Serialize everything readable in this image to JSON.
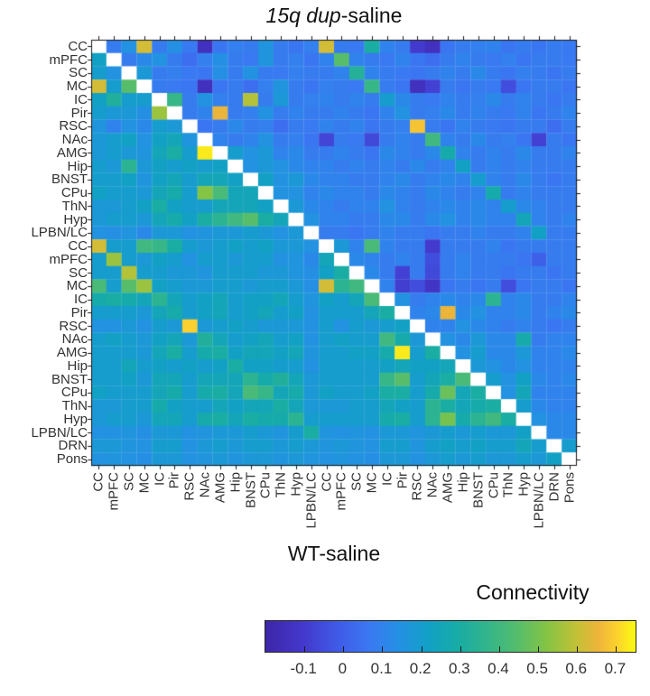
{
  "title": {
    "italic": "15q dup",
    "rest": "-saline"
  },
  "x_axis_title": "WT-saline",
  "colorbar": {
    "title": "Connectivity",
    "tick_labels": [
      "-0.1",
      "0",
      "0.1",
      "0.2",
      "0.3",
      "0.4",
      "0.5",
      "0.6",
      "0.7"
    ],
    "tick_values": [
      -0.1,
      0,
      0.1,
      0.2,
      0.3,
      0.4,
      0.5,
      0.6,
      0.7
    ],
    "domain": [
      -0.2,
      0.75
    ]
  },
  "colors": {
    "background": "#ffffff",
    "axis": "#1a1a1a",
    "tick_label": "#333333",
    "title_text": "#111111",
    "diagonal_cell": "#ffffff",
    "colormap_name": "parula",
    "colormap_stops": [
      [
        0.0,
        "#3e26a8"
      ],
      [
        0.1,
        "#4338cb"
      ],
      [
        0.2,
        "#3f5ce8"
      ],
      [
        0.28,
        "#3a78f2"
      ],
      [
        0.36,
        "#2490e4"
      ],
      [
        0.44,
        "#12a0c6"
      ],
      [
        0.52,
        "#18aca5"
      ],
      [
        0.6,
        "#33b58b"
      ],
      [
        0.68,
        "#55bd6d"
      ],
      [
        0.76,
        "#84c444"
      ],
      [
        0.84,
        "#c2c136"
      ],
      [
        0.9,
        "#eeb43a"
      ],
      [
        0.95,
        "#fcd22e"
      ],
      [
        1.0,
        "#f9fb0e"
      ]
    ]
  },
  "chart_data": {
    "type": "heatmap",
    "title": "15q dup-saline",
    "xlabel": "WT-saline",
    "legend_label": "Connectivity",
    "upper_triangle_group": "15q dup-saline",
    "lower_triangle_group": "WT-saline",
    "value_domain": [
      -0.2,
      0.75
    ],
    "grid": false,
    "labels": [
      "CC",
      "mPFC",
      "SC",
      "MC",
      "IC",
      "Pir",
      "RSC",
      "NAc",
      "AMG",
      "Hip",
      "BNST",
      "CPu",
      "ThN",
      "Hyp",
      "LPBN/LC",
      "CC",
      "mPFC",
      "SC",
      "MC",
      "IC",
      "Pir",
      "RSC",
      "NAc",
      "AMG",
      "Hip",
      "BNST",
      "CPu",
      "ThN",
      "Hyp",
      "LPBN/LC",
      "DRN",
      "Pons"
    ],
    "values": [
      [
        null,
        0.08,
        0.15,
        0.62,
        0.08,
        0.14,
        0.07,
        -0.14,
        0.06,
        0.09,
        0.08,
        0.16,
        0.08,
        0.06,
        0.09,
        0.62,
        0.08,
        0.07,
        0.3,
        0.1,
        0.08,
        -0.1,
        -0.14,
        0.06,
        0.08,
        0.09,
        0.1,
        0.06,
        0.08,
        0.06,
        0.08,
        0.07
      ],
      [
        0.22,
        null,
        0.08,
        0.12,
        0.15,
        0.08,
        0.04,
        0.09,
        0.14,
        0.08,
        0.07,
        0.16,
        0.08,
        0.09,
        0.06,
        0.1,
        0.45,
        0.1,
        0.08,
        0.07,
        0.1,
        0.06,
        0.04,
        0.08,
        0.1,
        0.08,
        0.07,
        0.09,
        0.06,
        0.08,
        0.08,
        0.07
      ],
      [
        0.2,
        0.15,
        null,
        0.18,
        0.08,
        0.09,
        0.07,
        0.06,
        0.14,
        0.08,
        0.15,
        0.08,
        0.07,
        0.09,
        0.08,
        0.08,
        0.1,
        0.33,
        0.1,
        0.08,
        0.07,
        0.06,
        0.08,
        0.1,
        0.08,
        0.12,
        0.08,
        0.06,
        0.09,
        0.08,
        0.06,
        0.08
      ],
      [
        0.62,
        0.2,
        0.45,
        null,
        0.08,
        0.07,
        0.06,
        -0.14,
        0.06,
        0.08,
        0.04,
        0.09,
        0.16,
        0.08,
        0.06,
        0.09,
        0.08,
        0.07,
        0.38,
        0.08,
        0.06,
        -0.14,
        -0.08,
        0.08,
        0.06,
        0.08,
        0.07,
        -0.05,
        0.06,
        0.08,
        0.08,
        0.06
      ],
      [
        0.22,
        0.32,
        0.2,
        0.2,
        null,
        0.38,
        0.08,
        0.15,
        0.09,
        0.08,
        0.58,
        0.08,
        0.18,
        0.08,
        0.09,
        0.1,
        0.08,
        0.1,
        0.08,
        0.2,
        0.12,
        0.08,
        0.07,
        0.1,
        0.08,
        0.09,
        0.12,
        0.08,
        0.1,
        0.08,
        0.06,
        0.08
      ],
      [
        0.2,
        0.18,
        0.18,
        0.14,
        0.55,
        null,
        0.08,
        0.1,
        0.65,
        0.08,
        0.09,
        0.15,
        0.08,
        0.1,
        0.08,
        0.08,
        0.1,
        0.08,
        0.06,
        0.1,
        0.15,
        0.08,
        0.09,
        0.12,
        0.08,
        0.1,
        0.08,
        0.07,
        0.1,
        0.06,
        0.08,
        0.1
      ],
      [
        0.16,
        0.1,
        0.15,
        0.12,
        0.2,
        0.18,
        null,
        0.06,
        0.08,
        0.12,
        0.08,
        0.09,
        0.04,
        0.08,
        0.07,
        0.1,
        0.08,
        0.1,
        0.06,
        0.08,
        0.09,
        0.68,
        0.08,
        0.06,
        0.1,
        0.08,
        0.07,
        0.06,
        0.08,
        0.08,
        0.04,
        0.08
      ],
      [
        0.18,
        0.2,
        0.22,
        0.15,
        0.22,
        0.25,
        0.16,
        null,
        0.1,
        0.08,
        0.1,
        0.15,
        0.08,
        0.09,
        0.06,
        -0.07,
        0.08,
        0.07,
        -0.06,
        0.08,
        0.1,
        0.08,
        0.4,
        0.1,
        0.08,
        0.12,
        0.08,
        0.09,
        0.06,
        -0.08,
        0.08,
        0.06
      ],
      [
        0.18,
        0.2,
        0.18,
        0.16,
        0.25,
        0.3,
        0.2,
        0.73,
        null,
        0.2,
        0.15,
        0.18,
        0.1,
        0.12,
        0.08,
        0.08,
        0.1,
        0.08,
        0.06,
        0.12,
        0.1,
        0.08,
        0.12,
        0.28,
        0.1,
        0.08,
        0.1,
        0.08,
        0.12,
        0.08,
        0.08,
        0.1
      ],
      [
        0.2,
        0.18,
        0.35,
        0.18,
        0.22,
        0.2,
        0.22,
        0.2,
        0.22,
        null,
        0.15,
        0.18,
        0.15,
        0.12,
        0.1,
        0.1,
        0.08,
        0.1,
        0.08,
        0.1,
        0.08,
        0.12,
        0.08,
        0.1,
        0.22,
        0.08,
        0.1,
        0.08,
        0.1,
        0.08,
        0.08,
        0.08
      ],
      [
        0.2,
        0.2,
        0.22,
        0.16,
        0.22,
        0.25,
        0.2,
        0.25,
        0.25,
        0.22,
        null,
        0.22,
        0.15,
        0.18,
        0.12,
        0.1,
        0.1,
        0.08,
        0.08,
        0.1,
        0.12,
        0.08,
        0.1,
        0.12,
        0.1,
        0.2,
        0.1,
        0.08,
        0.12,
        0.08,
        0.06,
        0.08
      ],
      [
        0.22,
        0.2,
        0.2,
        0.18,
        0.25,
        0.28,
        0.2,
        0.52,
        0.42,
        0.25,
        0.25,
        null,
        0.15,
        0.15,
        0.1,
        0.12,
        0.1,
        0.1,
        0.08,
        0.12,
        0.1,
        0.08,
        0.12,
        0.1,
        0.08,
        0.1,
        0.28,
        0.08,
        0.1,
        0.08,
        0.08,
        0.08
      ],
      [
        0.18,
        0.18,
        0.2,
        0.22,
        0.3,
        0.22,
        0.2,
        0.2,
        0.25,
        0.25,
        0.25,
        0.22,
        null,
        0.18,
        0.12,
        0.1,
        0.08,
        0.1,
        0.1,
        0.15,
        0.1,
        0.08,
        0.1,
        0.12,
        0.1,
        0.12,
        0.1,
        0.2,
        0.12,
        0.1,
        0.08,
        0.08
      ],
      [
        0.18,
        0.2,
        0.2,
        0.18,
        0.25,
        0.28,
        0.22,
        0.3,
        0.35,
        0.4,
        0.45,
        0.3,
        0.25,
        null,
        0.15,
        0.1,
        0.1,
        0.08,
        0.08,
        0.12,
        0.12,
        0.08,
        0.12,
        0.15,
        0.1,
        0.12,
        0.1,
        0.1,
        0.25,
        0.1,
        0.08,
        0.1
      ],
      [
        0.15,
        0.14,
        0.16,
        0.12,
        0.18,
        0.18,
        0.15,
        0.16,
        0.18,
        0.18,
        0.2,
        0.18,
        0.15,
        0.18,
        null,
        0.08,
        0.08,
        0.06,
        0.08,
        0.1,
        0.08,
        0.08,
        0.06,
        0.08,
        0.08,
        0.1,
        0.08,
        0.08,
        0.1,
        0.22,
        0.08,
        0.08
      ],
      [
        0.62,
        0.2,
        0.2,
        0.4,
        0.38,
        0.3,
        0.2,
        0.18,
        0.2,
        0.22,
        0.2,
        0.22,
        0.18,
        0.18,
        0.15,
        null,
        0.18,
        0.1,
        0.42,
        0.1,
        0.08,
        0.08,
        -0.1,
        0.08,
        0.08,
        0.08,
        0.1,
        0.06,
        0.08,
        0.08,
        0.08,
        0.08
      ],
      [
        0.2,
        0.55,
        0.2,
        0.18,
        0.22,
        0.2,
        0.15,
        0.2,
        0.2,
        0.18,
        0.2,
        0.2,
        0.15,
        0.16,
        0.12,
        0.25,
        null,
        0.12,
        0.1,
        0.08,
        0.1,
        0.08,
        -0.05,
        0.08,
        0.1,
        0.08,
        0.08,
        0.08,
        0.06,
        0.0,
        0.08,
        0.08
      ],
      [
        0.2,
        0.2,
        0.58,
        0.2,
        0.2,
        0.18,
        0.18,
        0.16,
        0.2,
        0.2,
        0.2,
        0.18,
        0.18,
        0.16,
        0.14,
        0.22,
        0.3,
        null,
        0.12,
        0.08,
        -0.08,
        0.08,
        -0.06,
        0.08,
        0.1,
        0.08,
        0.08,
        0.06,
        0.08,
        0.08,
        0.06,
        0.08
      ],
      [
        0.42,
        0.2,
        0.45,
        0.55,
        0.22,
        0.2,
        0.18,
        0.18,
        0.2,
        0.2,
        0.18,
        0.2,
        0.2,
        0.18,
        0.14,
        0.62,
        0.35,
        0.4,
        null,
        0.1,
        -0.09,
        -0.05,
        -0.12,
        0.06,
        0.08,
        0.06,
        0.08,
        -0.05,
        0.06,
        0.08,
        0.08,
        0.06
      ],
      [
        0.28,
        0.3,
        0.28,
        0.25,
        0.35,
        0.25,
        0.2,
        0.22,
        0.25,
        0.2,
        0.22,
        0.22,
        0.25,
        0.2,
        0.16,
        0.22,
        0.2,
        0.25,
        0.42,
        null,
        0.15,
        0.08,
        0.1,
        0.12,
        0.1,
        0.12,
        0.35,
        0.1,
        0.12,
        0.08,
        0.08,
        0.1
      ],
      [
        0.2,
        0.2,
        0.2,
        0.18,
        0.25,
        0.28,
        0.2,
        0.22,
        0.25,
        0.2,
        0.22,
        0.25,
        0.2,
        0.22,
        0.15,
        0.2,
        0.2,
        0.2,
        0.25,
        0.3,
        null,
        0.1,
        0.12,
        0.65,
        0.12,
        0.15,
        0.1,
        0.1,
        0.12,
        0.08,
        0.1,
        0.12
      ],
      [
        0.15,
        0.15,
        0.18,
        0.15,
        0.2,
        0.18,
        0.7,
        0.18,
        0.2,
        0.22,
        0.2,
        0.18,
        0.18,
        0.18,
        0.15,
        0.2,
        0.15,
        0.2,
        0.18,
        0.2,
        0.22,
        null,
        0.1,
        0.1,
        0.15,
        0.12,
        0.1,
        0.08,
        0.1,
        0.08,
        0.06,
        0.08
      ],
      [
        0.2,
        0.22,
        0.2,
        0.18,
        0.22,
        0.25,
        0.18,
        0.32,
        0.25,
        0.2,
        0.22,
        0.25,
        0.2,
        0.22,
        0.15,
        0.2,
        0.22,
        0.2,
        0.2,
        0.4,
        0.28,
        0.18,
        null,
        0.15,
        0.12,
        0.18,
        0.12,
        0.12,
        0.28,
        0.08,
        0.1,
        0.1
      ],
      [
        0.2,
        0.2,
        0.2,
        0.18,
        0.25,
        0.3,
        0.2,
        0.28,
        0.3,
        0.22,
        0.25,
        0.25,
        0.22,
        0.25,
        0.16,
        0.2,
        0.2,
        0.22,
        0.22,
        0.28,
        0.73,
        0.2,
        0.3,
        null,
        0.15,
        0.2,
        0.12,
        0.12,
        0.18,
        0.1,
        0.1,
        0.12
      ],
      [
        0.2,
        0.2,
        0.25,
        0.2,
        0.22,
        0.2,
        0.22,
        0.2,
        0.22,
        0.3,
        0.22,
        0.22,
        0.2,
        0.2,
        0.15,
        0.2,
        0.2,
        0.2,
        0.2,
        0.22,
        0.25,
        0.22,
        0.22,
        0.25,
        null,
        0.18,
        0.15,
        0.12,
        0.15,
        0.1,
        0.1,
        0.1
      ],
      [
        0.2,
        0.2,
        0.22,
        0.18,
        0.25,
        0.25,
        0.2,
        0.25,
        0.25,
        0.25,
        0.35,
        0.28,
        0.32,
        0.25,
        0.18,
        0.2,
        0.2,
        0.2,
        0.2,
        0.38,
        0.45,
        0.2,
        0.25,
        0.3,
        0.42,
        null,
        0.2,
        0.15,
        0.22,
        0.12,
        0.1,
        0.12
      ],
      [
        0.22,
        0.2,
        0.2,
        0.2,
        0.25,
        0.28,
        0.2,
        0.28,
        0.3,
        0.25,
        0.42,
        0.38,
        0.25,
        0.28,
        0.18,
        0.22,
        0.2,
        0.2,
        0.22,
        0.3,
        0.3,
        0.2,
        0.28,
        0.48,
        0.25,
        0.3,
        null,
        0.15,
        0.25,
        0.1,
        0.1,
        0.1
      ],
      [
        0.18,
        0.18,
        0.2,
        0.2,
        0.28,
        0.22,
        0.2,
        0.2,
        0.25,
        0.22,
        0.25,
        0.25,
        0.3,
        0.25,
        0.18,
        0.18,
        0.18,
        0.2,
        0.2,
        0.25,
        0.22,
        0.2,
        0.35,
        0.3,
        0.25,
        0.28,
        0.3,
        null,
        0.2,
        0.12,
        0.1,
        0.1
      ],
      [
        0.18,
        0.2,
        0.2,
        0.18,
        0.25,
        0.25,
        0.2,
        0.28,
        0.3,
        0.25,
        0.3,
        0.28,
        0.28,
        0.35,
        0.2,
        0.2,
        0.2,
        0.2,
        0.2,
        0.28,
        0.3,
        0.2,
        0.35,
        0.5,
        0.28,
        0.35,
        0.4,
        0.3,
        null,
        0.15,
        0.12,
        0.12
      ],
      [
        0.15,
        0.15,
        0.16,
        0.14,
        0.18,
        0.18,
        0.15,
        0.16,
        0.18,
        0.18,
        0.2,
        0.18,
        0.16,
        0.2,
        0.3,
        0.16,
        0.15,
        0.16,
        0.15,
        0.18,
        0.18,
        0.16,
        0.18,
        0.2,
        0.18,
        0.2,
        0.18,
        0.18,
        0.22,
        null,
        0.12,
        0.12
      ],
      [
        0.18,
        0.18,
        0.16,
        0.15,
        0.2,
        0.2,
        0.15,
        0.18,
        0.2,
        0.18,
        0.2,
        0.2,
        0.18,
        0.2,
        0.18,
        0.16,
        0.18,
        0.16,
        0.15,
        0.2,
        0.2,
        0.16,
        0.2,
        0.22,
        0.2,
        0.22,
        0.2,
        0.2,
        0.25,
        0.2,
        null,
        0.2
      ],
      [
        0.15,
        0.16,
        0.15,
        0.14,
        0.18,
        0.18,
        0.15,
        0.16,
        0.18,
        0.16,
        0.18,
        0.18,
        0.16,
        0.18,
        0.16,
        0.15,
        0.16,
        0.15,
        0.14,
        0.18,
        0.18,
        0.15,
        0.18,
        0.2,
        0.18,
        0.2,
        0.18,
        0.18,
        0.2,
        0.18,
        0.22,
        null
      ]
    ]
  }
}
